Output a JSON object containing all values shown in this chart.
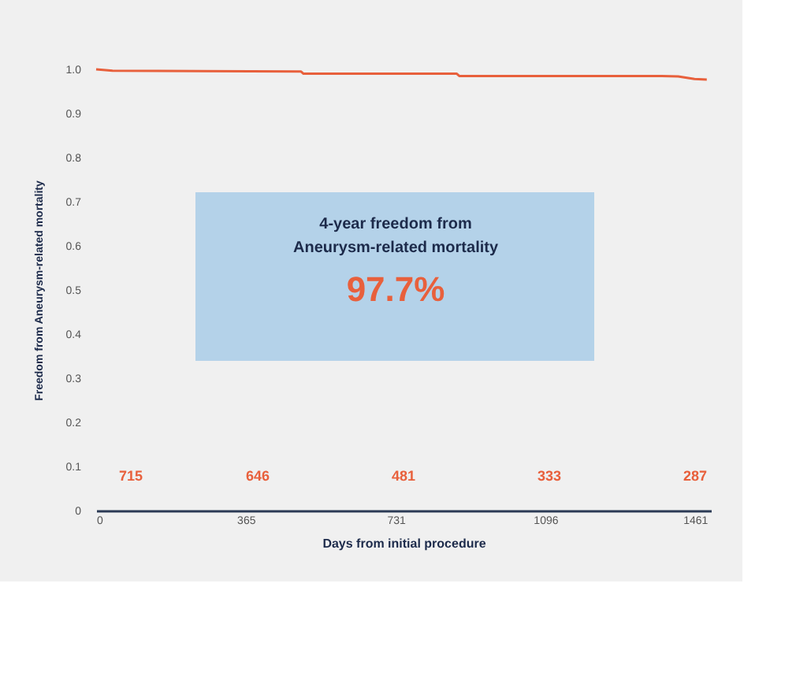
{
  "chart_data": {
    "type": "line",
    "xlabel": "Days from initial procedure",
    "ylabel": "Freedom from Aneurysm-related mortality",
    "series": [
      {
        "color": "#e8603c",
        "x": [
          0,
          40,
          500,
          506,
          880,
          886,
          1380,
          1420,
          1460,
          1490
        ],
        "values": [
          1.0,
          0.997,
          0.995,
          0.99,
          0.99,
          0.985,
          0.985,
          0.984,
          0.978,
          0.977
        ]
      }
    ],
    "xlim": [
      0,
      1500
    ],
    "xticks": [
      0,
      365,
      731,
      {
        "value": 1096,
        "label": "1096"
      },
      {
        "value": 1461,
        "label": "1461"
      }
    ],
    "ylim": [
      0,
      1.0
    ],
    "yticks": [
      {
        "value": 0,
        "label": "0"
      },
      0.1,
      0.2,
      0.3,
      0.4,
      0.5,
      0.6,
      0.7,
      0.8,
      0.9,
      {
        "value": 1.0,
        "label": "1.0"
      }
    ],
    "grid": false,
    "marker": "none",
    "line_style": "solid",
    "annotations": [
      "715",
      "646",
      "481",
      "333",
      "287",
      "4-year freedom from",
      "Aneurysm-related mortality",
      "97.7%"
    ]
  }
}
